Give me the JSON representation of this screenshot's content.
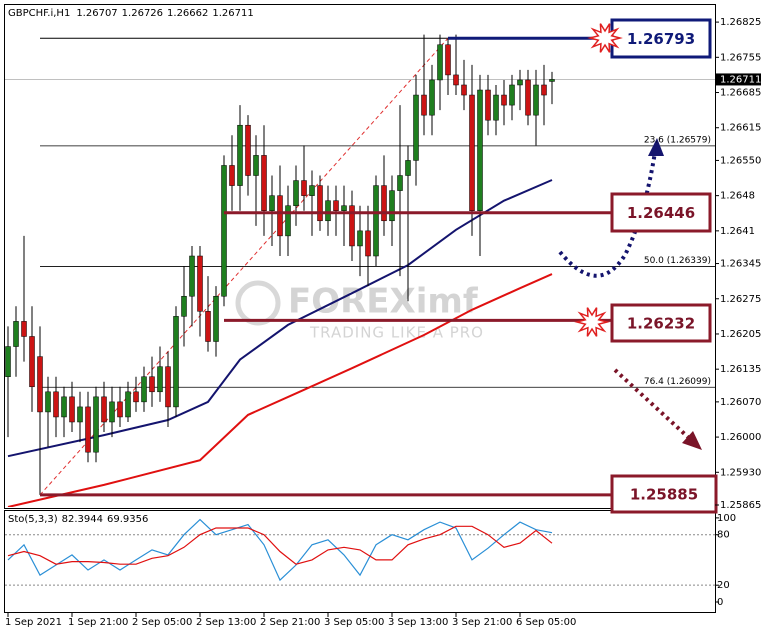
{
  "chart_data": {
    "type": "candlestick",
    "symbol": "GBPCHF.i,H1",
    "bull_color": "#1f7f1f",
    "bear_color": "#cc1414",
    "open": [
      1.2612,
      1.2618,
      1.2623,
      1.262,
      1.2616,
      1.2605,
      1.2609,
      1.2604,
      1.2608,
      1.2603,
      1.2606,
      1.2597,
      1.2608,
      1.2603,
      1.2607,
      1.2604,
      1.2609,
      1.2607,
      1.2612,
      1.2609,
      1.2614,
      1.2606,
      1.2624,
      1.2628,
      1.2636,
      1.2625,
      1.2619,
      1.2628,
      1.2654,
      1.265,
      1.2662,
      1.2652,
      1.2656,
      1.2645,
      1.2648,
      1.264,
      1.2646,
      1.2651,
      1.2648,
      1.265,
      1.2643,
      1.2647,
      1.2645,
      1.2646,
      1.2638,
      1.2641,
      1.2636,
      1.265,
      1.2643,
      1.2649,
      1.2652,
      1.2655,
      1.2668,
      1.2664,
      1.2671,
      1.2678,
      1.2672,
      1.267,
      1.2668,
      1.2645,
      1.2669,
      1.2663,
      1.2668,
      1.2666,
      1.267,
      1.2671,
      1.2664,
      1.267,
      1.26707
    ],
    "high": [
      1.2622,
      1.2626,
      1.264,
      1.2626,
      1.2622,
      1.2612,
      1.2612,
      1.261,
      1.2611,
      1.2609,
      1.2609,
      1.261,
      1.2611,
      1.261,
      1.261,
      1.2611,
      1.2612,
      1.2614,
      1.2616,
      1.2618,
      1.2617,
      1.2626,
      1.2634,
      1.2638,
      1.2638,
      1.2632,
      1.263,
      1.2656,
      1.266,
      1.2666,
      1.2664,
      1.266,
      1.2662,
      1.2652,
      1.2654,
      1.265,
      1.2654,
      1.2658,
      1.2653,
      1.2652,
      1.265,
      1.265,
      1.265,
      1.2649,
      1.2646,
      1.2646,
      1.2652,
      1.2656,
      1.2652,
      1.2666,
      1.2658,
      1.2672,
      1.268,
      1.2674,
      1.268,
      1.26793,
      1.268,
      1.2675,
      1.2674,
      1.2672,
      1.2672,
      1.267,
      1.2671,
      1.2672,
      1.2673,
      1.2673,
      1.2673,
      1.2674,
      1.26726
    ],
    "low": [
      1.26,
      1.2612,
      1.2615,
      1.2605,
      1.25885,
      1.2598,
      1.26,
      1.26,
      1.2601,
      1.2599,
      1.2595,
      1.2595,
      1.2601,
      1.26,
      1.2602,
      1.2603,
      1.2605,
      1.2605,
      1.2606,
      1.2607,
      1.2602,
      1.2604,
      1.2618,
      1.2622,
      1.262,
      1.2617,
      1.2616,
      1.2626,
      1.2645,
      1.2645,
      1.2648,
      1.2642,
      1.264,
      1.2638,
      1.2636,
      1.2636,
      1.2642,
      1.2645,
      1.264,
      1.2641,
      1.264,
      1.264,
      1.2638,
      1.2635,
      1.2632,
      1.263,
      1.2634,
      1.264,
      1.2638,
      1.2632,
      1.2627,
      1.265,
      1.266,
      1.266,
      1.2665,
      1.2668,
      1.2668,
      1.2665,
      1.264,
      1.2636,
      1.266,
      1.266,
      1.2662,
      1.2663,
      1.2665,
      1.2662,
      1.2658,
      1.2662,
      1.26662
    ],
    "close": [
      1.2618,
      1.2623,
      1.262,
      1.261,
      1.2605,
      1.2609,
      1.2604,
      1.2608,
      1.2603,
      1.2606,
      1.2597,
      1.2608,
      1.2603,
      1.2607,
      1.2604,
      1.2609,
      1.2607,
      1.2612,
      1.2609,
      1.2614,
      1.2606,
      1.2624,
      1.2628,
      1.2636,
      1.2625,
      1.2619,
      1.2628,
      1.2654,
      1.265,
      1.2662,
      1.2652,
      1.2656,
      1.2645,
      1.2648,
      1.264,
      1.2646,
      1.2651,
      1.2648,
      1.265,
      1.2643,
      1.2647,
      1.2645,
      1.2646,
      1.2638,
      1.2641,
      1.2636,
      1.265,
      1.2643,
      1.2649,
      1.2652,
      1.2655,
      1.2668,
      1.2664,
      1.2671,
      1.2678,
      1.2672,
      1.267,
      1.2668,
      1.2645,
      1.2669,
      1.2663,
      1.2668,
      1.2666,
      1.267,
      1.2671,
      1.2664,
      1.267,
      1.2668,
      1.26711
    ],
    "moving_averages": [
      {
        "color": "#14146e",
        "x": [
          0,
          12,
          20,
          25,
          29,
          35,
          43,
          50,
          56,
          62,
          68
        ],
        "values": [
          1.25962,
          1.26004,
          1.26034,
          1.2607,
          1.26154,
          1.26223,
          1.26286,
          1.26342,
          1.26412,
          1.2647,
          1.26511
        ]
      },
      {
        "color": "#e01010",
        "x": [
          0,
          12,
          24,
          30,
          37,
          43,
          52,
          58,
          64,
          68
        ],
        "values": [
          1.25861,
          1.25905,
          1.25954,
          1.26044,
          1.26094,
          1.26137,
          1.26203,
          1.26253,
          1.26296,
          1.26324
        ]
      }
    ],
    "ylim": [
      1.25861,
      1.26859
    ],
    "yticks": [
      1.26825,
      1.26755,
      1.26685,
      1.26615,
      {
        "value": 1.2655,
        "label": "1.26550"
      },
      1.2648,
      1.2641,
      1.26345,
      1.26275,
      1.26205,
      1.26135,
      {
        "value": 1.2607,
        "label": "1.26070"
      },
      {
        "value": 1.26,
        "label": "1.26000"
      },
      {
        "value": 1.2593,
        "label": "1.25930"
      },
      1.25865
    ],
    "xticks": [
      {
        "value": 0,
        "label": "1 Sep 2021"
      },
      {
        "value": 8,
        "label": "1 Sep 21:00"
      },
      {
        "value": 16,
        "label": "2 Sep 05:00"
      },
      {
        "value": 24,
        "label": "2 Sep 13:00"
      },
      {
        "value": 32,
        "label": "2 Sep 21:00"
      },
      {
        "value": 40,
        "label": "3 Sep 05:00"
      },
      {
        "value": 48,
        "label": "3 Sep 13:00"
      },
      {
        "value": 56,
        "label": "3 Sep 21:00"
      },
      {
        "value": 64,
        "label": "6 Sep 05:00"
      }
    ],
    "levels": [
      {
        "value": 1.26793,
        "color": "#0f1a78"
      },
      {
        "value": 1.26446,
        "color": "#8b1a2a"
      },
      {
        "value": 1.26232,
        "color": "#8b1a2a"
      },
      {
        "value": 1.25885,
        "color": "#8b1a2a"
      }
    ],
    "fib_levels": [
      {
        "value": 1.26579,
        "label": "23.6 (1.26579)"
      },
      {
        "value": 1.26339,
        "label": "50.0 (1.26339)"
      },
      {
        "value": 1.26099,
        "label": "76.4 (1.26099)"
      }
    ],
    "watermark": {
      "brand": "FOREXimf",
      "tagline": "TRADING LIKE A PRO"
    },
    "stochastic": {
      "label": "Sto(5,3,3)",
      "x": [
        0,
        2,
        4,
        6,
        8,
        10,
        12,
        14,
        16,
        18,
        20,
        22,
        24,
        26,
        28,
        30,
        32,
        34,
        36,
        38,
        40,
        42,
        44,
        46,
        48,
        50,
        52,
        54,
        56,
        58,
        60,
        62,
        64,
        66,
        68
      ],
      "series": [
        {
          "color": "#2a8fd6",
          "values": [
            50,
            68,
            32,
            44,
            56,
            38,
            50,
            38,
            50,
            62,
            56,
            80,
            98,
            80,
            86,
            92,
            68,
            26,
            44,
            68,
            74,
            56,
            32,
            68,
            80,
            74,
            86,
            95,
            88,
            50,
            64,
            80,
            95,
            86,
            82.3944
          ]
        },
        {
          "color": "#e01010",
          "values": [
            55,
            60,
            55,
            45,
            48,
            48,
            47,
            45,
            45,
            52,
            55,
            65,
            80,
            88,
            88,
            88,
            80,
            60,
            45,
            50,
            62,
            65,
            62,
            50,
            50,
            68,
            75,
            80,
            90,
            90,
            80,
            65,
            70,
            85,
            69.9356
          ]
        }
      ],
      "ylim": [
        -9.5,
        107
      ],
      "yticks": [
        100,
        80,
        20,
        0
      ],
      "levels": [
        80,
        20
      ]
    }
  }
}
